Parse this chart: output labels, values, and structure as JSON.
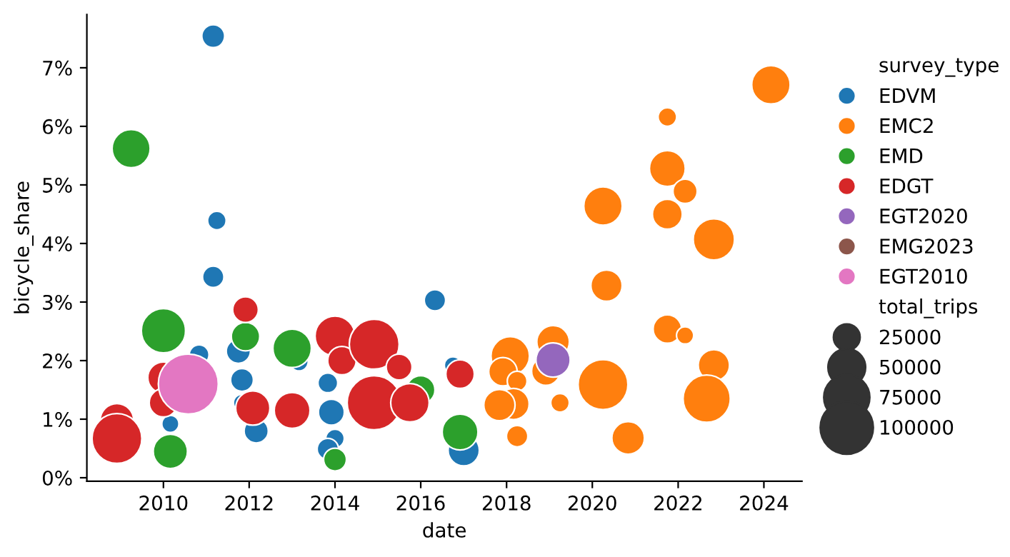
{
  "chart_data": {
    "type": "bubble",
    "xlabel": "date",
    "ylabel": "bicycle_share",
    "legend_title": "survey_type",
    "legend": "right",
    "grid": false,
    "marker": "circle",
    "xlim": [
      "2008-03-20",
      "2024-11-20"
    ],
    "xticks": [
      "2010",
      "2012",
      "2014",
      "2016",
      "2018",
      "2020",
      "2022",
      "2024"
    ],
    "ylim": [
      -0.06,
      7.91
    ],
    "yticks": [
      {
        "value": 0,
        "label": "0%"
      },
      {
        "value": 1,
        "label": "1%"
      },
      {
        "value": 2,
        "label": "2%"
      },
      {
        "value": 3,
        "label": "3%"
      },
      {
        "value": 4,
        "label": "4%"
      },
      {
        "value": 5,
        "label": "5%"
      },
      {
        "value": 6,
        "label": "6%"
      },
      {
        "value": 7,
        "label": "7%"
      }
    ],
    "size_legend": [
      25000,
      50000,
      75000,
      100000
    ],
    "annotations": [
      "total_trips"
    ],
    "series": [
      {
        "name": "EDVM",
        "color": "#1f77b4",
        "x": [
          "2011-03",
          "2011-04",
          "2011-03",
          "2011-10",
          "2010-11",
          "2010-03",
          "2011-11",
          "2011-11",
          "2012-03",
          "2013-03",
          "2013-11",
          "2013-12",
          "2014-01",
          "2013-11",
          "2016-05",
          "2016-10",
          "2017-01"
        ],
        "values": [
          7.54,
          4.39,
          3.43,
          2.16,
          2.1,
          0.92,
          1.67,
          1.28,
          0.8,
          1.98,
          1.62,
          1.12,
          0.67,
          0.49,
          3.03,
          1.92,
          0.47
        ],
        "sizes": [
          18700,
          12300,
          16400,
          21000,
          14000,
          10500,
          18700,
          10500,
          21000,
          12000,
          14000,
          24000,
          12300,
          16400,
          16400,
          10500,
          35000
        ]
      },
      {
        "name": "EMC2",
        "color": "#ff7f0e",
        "x": [
          "2018-02",
          "2017-12",
          "2018-04",
          "2018-03",
          "2017-11",
          "2018-04",
          "2019-02",
          "2018-12",
          "2019-04",
          "2020-04",
          "2020-04",
          "2020-05",
          "2020-11",
          "2021-10",
          "2021-10",
          "2022-03",
          "2021-10",
          "2022-11",
          "2021-10",
          "2022-03",
          "2022-11",
          "2022-09",
          "2024-03"
        ],
        "values": [
          2.08,
          1.81,
          1.65,
          1.26,
          1.24,
          0.71,
          2.32,
          1.82,
          1.28,
          1.59,
          4.64,
          3.28,
          0.68,
          6.16,
          5.28,
          4.89,
          4.5,
          4.07,
          2.54,
          2.43,
          1.92,
          1.35,
          6.71
        ],
        "sizes": [
          53000,
          29000,
          14000,
          35000,
          35000,
          16400,
          38000,
          29000,
          12300,
          89000,
          53000,
          35000,
          38000,
          12300,
          46000,
          21000,
          32000,
          61000,
          29000,
          10500,
          35000,
          80000,
          53000
        ]
      },
      {
        "name": "EMD",
        "color": "#2ca02c",
        "x": [
          "2009-04",
          "2011-12",
          "2010-01",
          "2010-03",
          "2013-01",
          "2014-01",
          "2016-01",
          "2016-12"
        ],
        "values": [
          5.62,
          2.41,
          2.51,
          0.45,
          2.21,
          0.31,
          1.5,
          0.78
        ],
        "sizes": [
          52000,
          29000,
          70000,
          42000,
          53000,
          18700,
          29000,
          46000
        ]
      },
      {
        "name": "EDGT",
        "color": "#d62728",
        "x": [
          "2011-12",
          "2010-01",
          "2010-01",
          "2008-12",
          "2008-12",
          "2012-02",
          "2013-01",
          "2014-01",
          "2014-03",
          "2014-12",
          "2014-12",
          "2015-07",
          "2015-10",
          "2016-12"
        ],
        "values": [
          2.87,
          1.71,
          1.28,
          0.98,
          0.67,
          1.19,
          1.15,
          2.42,
          2.0,
          2.28,
          1.28,
          1.89,
          1.28,
          1.77
        ],
        "sizes": [
          23700,
          35000,
          29000,
          40000,
          89000,
          42000,
          46000,
          57000,
          29000,
          89000,
          105000,
          24000,
          53000,
          29000
        ]
      },
      {
        "name": "EGT2020",
        "color": "#9467bd",
        "x": [
          "2019-02"
        ],
        "values": [
          2.01
        ],
        "sizes": [
          42000
        ]
      },
      {
        "name": "EMG2023",
        "color": "#8c564b"
      },
      {
        "name": "EGT2010",
        "color": "#e377c2",
        "x": [
          "2010-08"
        ],
        "values": [
          1.6
        ],
        "sizes": [
          129000
        ]
      }
    ]
  }
}
